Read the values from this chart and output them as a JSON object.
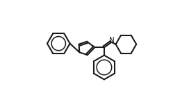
{
  "background_color": "#ffffff",
  "line_color": "#1a1a1a",
  "line_width": 1.5,
  "figsize": [
    2.72,
    1.54
  ],
  "dpi": 100
}
